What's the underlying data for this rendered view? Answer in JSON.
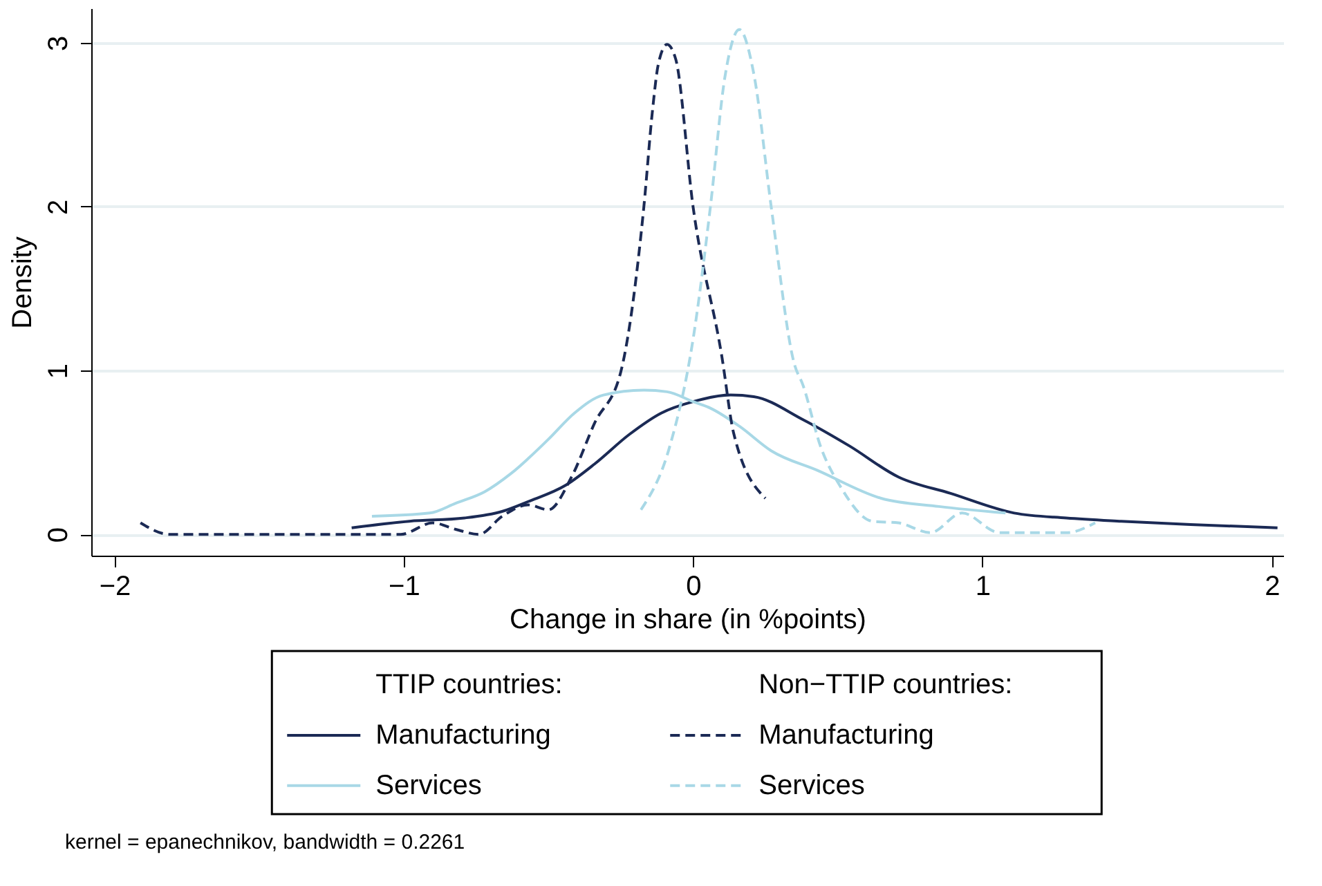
{
  "chart_data": {
    "type": "line",
    "xlabel": "Change in share (in %points)",
    "ylabel": "Density",
    "xlim": [
      -2.08,
      2.04
    ],
    "ylim": [
      -0.13,
      3.21
    ],
    "xticks": [
      {
        "value": -2,
        "label": "−2"
      },
      {
        "value": -1,
        "label": "−1"
      },
      0,
      1,
      2
    ],
    "yticks": [
      0,
      1,
      2,
      3
    ],
    "grid": "y",
    "legend": "bottom",
    "legend_title": [
      "TTIP countries:",
      "Non−TTIP countries:"
    ],
    "annotations": [
      "kernel = epanechnikov, bandwidth = 0.2261"
    ],
    "series": [
      {
        "name": "Manufacturing",
        "color": "#1b2a55",
        "line_style": "solid",
        "x": [
          -1.18,
          -0.98,
          -0.79,
          -0.66,
          -0.57,
          -0.44,
          -0.34,
          -0.22,
          -0.11,
          0.0,
          0.13,
          0.21,
          0.38,
          0.54,
          0.71,
          0.89,
          1.11,
          1.29,
          1.48,
          1.72,
          2.02
        ],
        "values": [
          0.04,
          0.08,
          0.1,
          0.14,
          0.2,
          0.3,
          0.43,
          0.61,
          0.74,
          0.81,
          0.85,
          0.84,
          0.7,
          0.54,
          0.35,
          0.25,
          0.13,
          0.1,
          0.08,
          0.06,
          0.04
        ]
      },
      {
        "name": "Services",
        "color": "#a8d8e6",
        "line_style": "solid",
        "x": [
          -1.11,
          -0.91,
          -0.82,
          -0.72,
          -0.63,
          -0.5,
          -0.41,
          -0.31,
          -0.17,
          -0.09,
          0.0,
          0.06,
          0.16,
          0.27,
          0.43,
          0.65,
          0.85,
          1.08
        ],
        "values": [
          0.11,
          0.13,
          0.19,
          0.26,
          0.37,
          0.58,
          0.74,
          0.85,
          0.88,
          0.87,
          0.81,
          0.77,
          0.66,
          0.51,
          0.39,
          0.22,
          0.17,
          0.13
        ]
      },
      {
        "name": "Manufacturing",
        "color": "#1b2a55",
        "line_style": "dashed",
        "x": [
          -1.91,
          -1.81,
          -1.01,
          -0.9,
          -0.82,
          -0.74,
          -0.66,
          -0.57,
          -0.5,
          -0.42,
          -0.34,
          -0.25,
          -0.17,
          -0.14,
          -0.12,
          -0.09,
          -0.06,
          0.0,
          0.1,
          0.14,
          0.25
        ],
        "values": [
          0.07,
          0.0,
          0.0,
          0.07,
          0.03,
          0.0,
          0.11,
          0.18,
          0.15,
          0.35,
          0.68,
          0.99,
          2.0,
          2.59,
          2.87,
          2.99,
          2.9,
          2.0,
          1.08,
          0.62,
          0.22
        ]
      },
      {
        "name": "Services",
        "color": "#a8d8e6",
        "line_style": "dashed",
        "x": [
          -0.18,
          -0.08,
          0.0,
          0.06,
          0.11,
          0.16,
          0.21,
          0.27,
          0.35,
          0.38,
          0.44,
          0.51,
          0.62,
          0.71,
          0.82,
          0.93,
          1.06,
          1.29,
          1.39
        ],
        "values": [
          0.15,
          0.54,
          1.19,
          2.0,
          2.79,
          3.08,
          2.81,
          2.0,
          1.04,
          0.91,
          0.54,
          0.29,
          0.08,
          0.07,
          0.01,
          0.13,
          0.01,
          0.01,
          0.07
        ]
      }
    ]
  }
}
